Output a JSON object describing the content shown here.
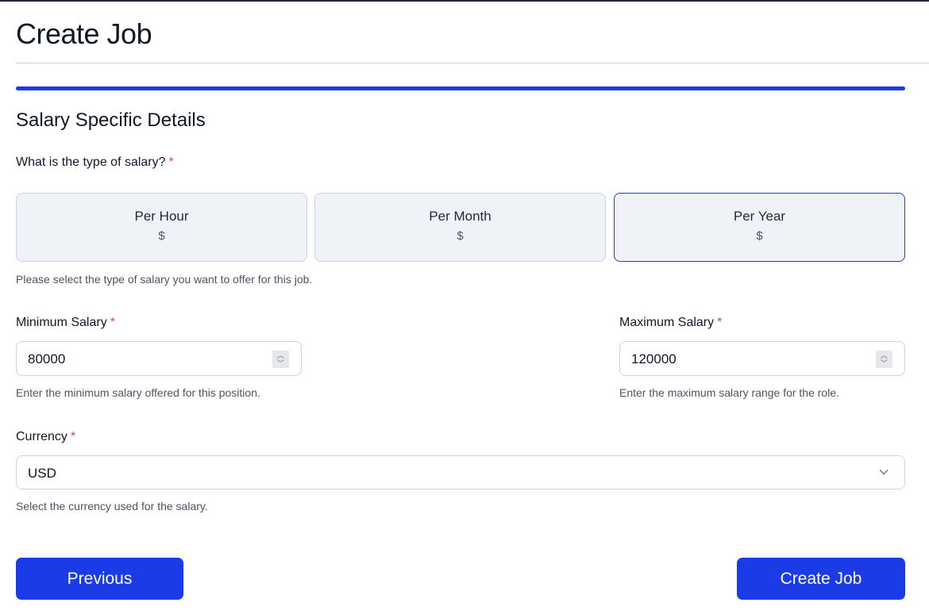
{
  "header": {
    "title": "Create Job"
  },
  "progress": {
    "percent": 100,
    "color": "#1a3be6"
  },
  "section": {
    "title": "Salary Specific Details"
  },
  "salary_type": {
    "question": "What is the type of salary?",
    "required_mark": "*",
    "options": [
      {
        "label": "Per Hour",
        "symbol": "$",
        "selected": false
      },
      {
        "label": "Per Month",
        "symbol": "$",
        "selected": false
      },
      {
        "label": "Per Year",
        "symbol": "$",
        "selected": true
      }
    ],
    "help": "Please select the type of salary you want to offer for this job."
  },
  "min_salary": {
    "label": "Minimum Salary",
    "required_mark": "*",
    "value": "80000",
    "help": "Enter the minimum salary offered for this position."
  },
  "max_salary": {
    "label": "Maximum Salary",
    "required_mark": "*",
    "value": "120000",
    "help": "Enter the maximum salary range for the role."
  },
  "currency": {
    "label": "Currency",
    "required_mark": "*",
    "value": "USD",
    "help": "Select the currency used for the salary."
  },
  "buttons": {
    "previous": "Previous",
    "create": "Create Job"
  }
}
